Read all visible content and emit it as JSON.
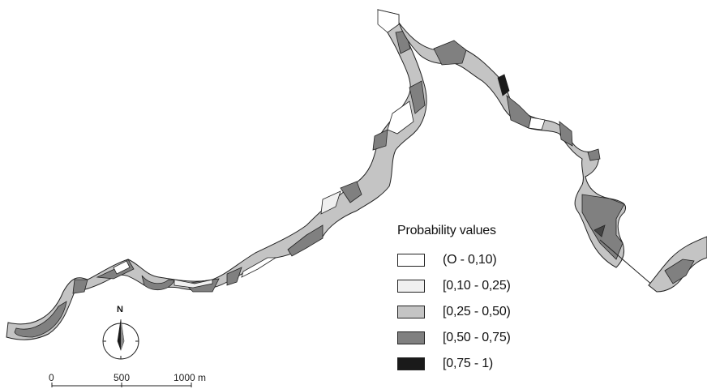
{
  "legend": {
    "title": "Probability values",
    "classes": [
      {
        "label": "(O - 0,10)",
        "color": "#ffffff"
      },
      {
        "label": "[0,10 - 0,25)",
        "color": "#f0f0f0"
      },
      {
        "label": "[0,25 - 0,50)",
        "color": "#c4c4c4"
      },
      {
        "label": "[0,50 - 0,75)",
        "color": "#808080"
      },
      {
        "label": "[0,75 - 1)",
        "color": "#1a1a1a"
      }
    ]
  },
  "north_arrow": {
    "label": "N"
  },
  "scale_bar": {
    "ticks": [
      "0",
      "500",
      "1000 m"
    ]
  },
  "colors": {
    "outline": "#222222",
    "background": "#ffffff"
  }
}
